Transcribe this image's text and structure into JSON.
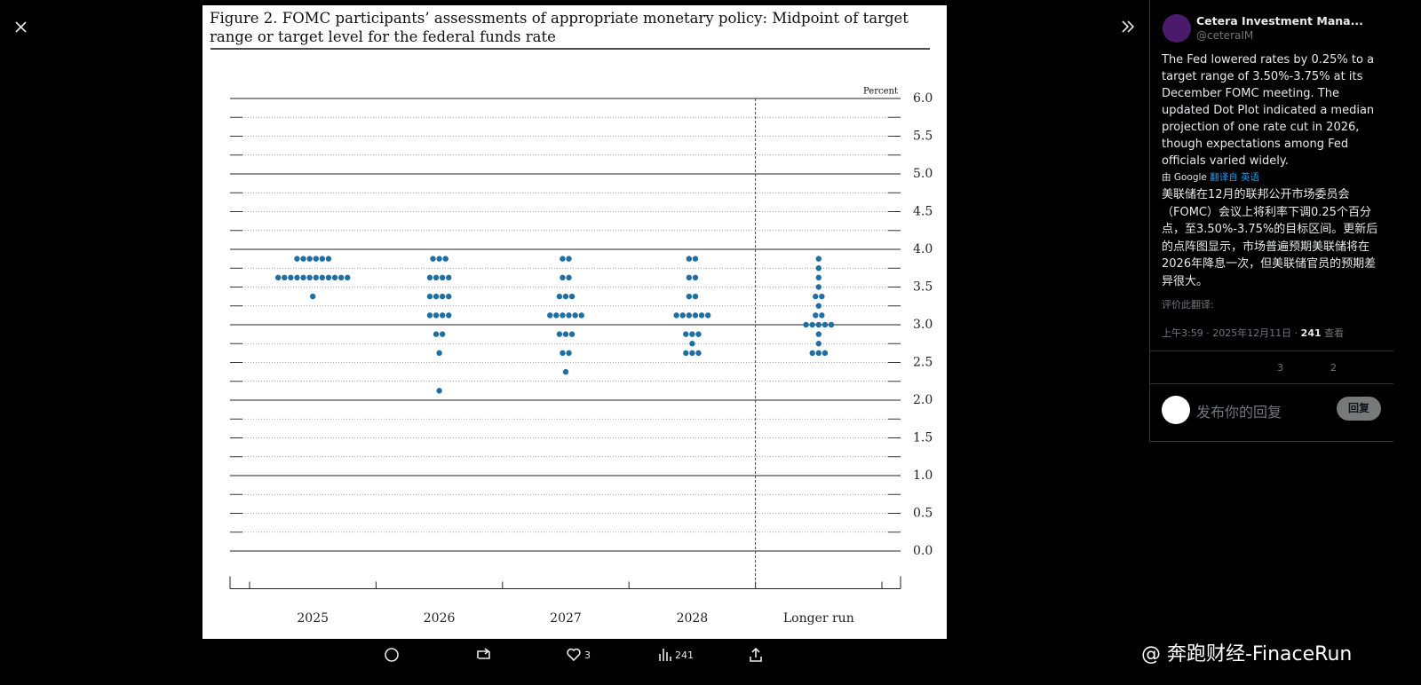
{
  "chart_data": {
    "type": "dot",
    "title": "Figure 2. FOMC participants’ assessments of appropriate monetary policy: Midpoint of target range or target level for the federal funds rate",
    "ylabel": "Percent",
    "categories": [
      "2025",
      "2026",
      "2027",
      "2028",
      "Longer run"
    ],
    "values": [
      [
        [
          3.875,
          6
        ],
        [
          3.625,
          12
        ],
        [
          3.375,
          1
        ]
      ],
      [
        [
          3.875,
          3
        ],
        [
          3.625,
          4
        ],
        [
          3.375,
          4
        ],
        [
          3.125,
          4
        ],
        [
          2.875,
          2
        ],
        [
          2.625,
          1
        ],
        [
          2.125,
          1
        ]
      ],
      [
        [
          3.875,
          2
        ],
        [
          3.625,
          2
        ],
        [
          3.375,
          3
        ],
        [
          3.125,
          6
        ],
        [
          2.875,
          3
        ],
        [
          2.625,
          2
        ],
        [
          2.375,
          1
        ]
      ],
      [
        [
          3.875,
          2
        ],
        [
          3.625,
          2
        ],
        [
          3.375,
          2
        ],
        [
          3.125,
          6
        ],
        [
          2.875,
          3
        ],
        [
          2.75,
          1
        ],
        [
          2.625,
          3
        ]
      ],
      [
        [
          3.875,
          1
        ],
        [
          3.75,
          1
        ],
        [
          3.625,
          1
        ],
        [
          3.5,
          1
        ],
        [
          3.375,
          2
        ],
        [
          3.25,
          1
        ],
        [
          3.125,
          2
        ],
        [
          3.0,
          5
        ],
        [
          2.875,
          1
        ],
        [
          2.75,
          1
        ],
        [
          2.625,
          3
        ]
      ]
    ],
    "color": "#1f6fa3",
    "ylim": [
      -0.5,
      6
    ],
    "yticks": [
      {
        "value": 0,
        "label": "0.0"
      },
      0.5,
      {
        "value": 1,
        "label": "1.0"
      },
      1.5,
      {
        "value": 2,
        "label": "2.0"
      },
      2.5,
      {
        "value": 3,
        "label": "3.0"
      },
      3.5,
      {
        "value": 4,
        "label": "4.0"
      },
      4.5,
      {
        "value": 5,
        "label": "5.0"
      },
      5.5,
      {
        "value": 6,
        "label": "6.0"
      }
    ],
    "grid": true
  },
  "viewer": {
    "likes": 3,
    "views": 241
  },
  "tweet": {
    "author": "Cetera Investment Mana...",
    "handle": "@ceteraIM",
    "text": "The Fed lowered rates by 0.25% to a target range of 3.50%-3.75% at its December FOMC meeting. The updated Dot Plot indicated a median projection of one rate cut in 2026, though expectations among Fed officials varied widely.",
    "translated_by": "由 Google",
    "translate_link": "翻译自 英语",
    "translation": "美联储在12月的联邦公开市场委员会（FOMC）会议上将利率下调0.25个百分点，至3.50%-3.75%的目标区间。更新后的点阵图显示，市场普遍预期美联储将在2026年降息一次，但美联储官员的预期差异很大。",
    "rate_prompt": "评价此翻译:",
    "time": "上午3:59 · 2025年12月11日 · ",
    "views": 241,
    "views_label": "查看",
    "likes": 3,
    "bookmarks": 2,
    "reply_placeholder": "发布你的回复",
    "reply_button": "回复"
  },
  "watermark": "@ 奔跑财经-FinaceRun"
}
